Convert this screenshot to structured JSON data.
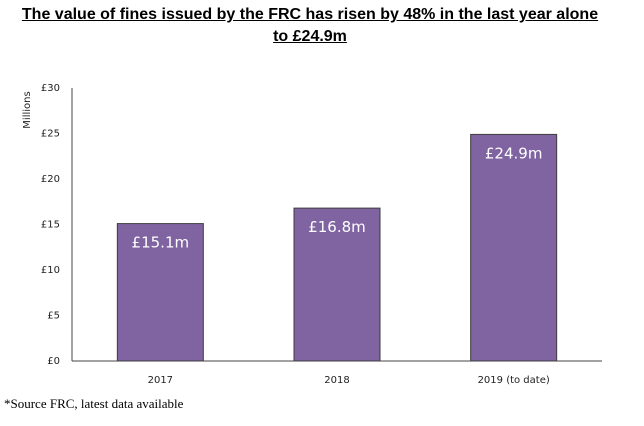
{
  "header": {
    "title_line1": "The value of fines issued by the FRC has risen by 48% in the last year alone",
    "title_line2": "to £24.9m"
  },
  "footer": {
    "source": "*Source FRC, latest data available"
  },
  "chart_data": {
    "type": "bar",
    "title": "The value of fines issued by the FRC has risen by 48% in the last year alone to £24.9m",
    "categories": [
      "2017",
      "2018",
      "2019 (to date)"
    ],
    "values": [
      15.1,
      16.8,
      24.9
    ],
    "data_labels": [
      "£15.1m",
      "£16.8m",
      "£24.9m"
    ],
    "ylabel": "Millions",
    "xlabel": "",
    "ylim": [
      0,
      30
    ],
    "yticks": [
      0,
      5,
      10,
      15,
      20,
      25,
      30
    ],
    "ytick_labels": [
      "£0",
      "£5",
      "£10",
      "£15",
      "£20",
      "£25",
      "£30"
    ],
    "bar_color": "#8064a2",
    "bar_outline": "#3d3d3d",
    "grid": false,
    "legend": "none"
  }
}
